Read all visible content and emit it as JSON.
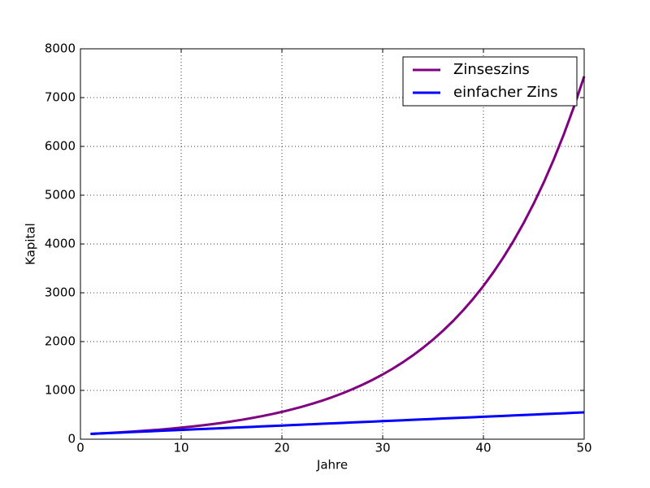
{
  "chart_data": {
    "type": "line",
    "xlabel": "Jahre",
    "ylabel": "Kapital",
    "x": [
      1,
      2,
      3,
      4,
      5,
      6,
      7,
      8,
      9,
      10,
      11,
      12,
      13,
      14,
      15,
      16,
      17,
      18,
      19,
      20,
      21,
      22,
      23,
      24,
      25,
      26,
      27,
      28,
      29,
      30,
      31,
      32,
      33,
      34,
      35,
      36,
      37,
      38,
      39,
      40,
      41,
      42,
      43,
      44,
      45,
      46,
      47,
      48,
      49,
      50
    ],
    "series": [
      {
        "name": "Zinseszins",
        "color": "#800080",
        "values": [
          109,
          119,
          130,
          141,
          154,
          168,
          183,
          199,
          217,
          237,
          258,
          281,
          307,
          334,
          364,
          397,
          433,
          472,
          514,
          560,
          611,
          666,
          726,
          791,
          862,
          940,
          1025,
          1117,
          1217,
          1327,
          1446,
          1576,
          1718,
          1873,
          2041,
          2225,
          2425,
          2644,
          2882,
          3141,
          3424,
          3732,
          4068,
          4434,
          4833,
          5268,
          5742,
          6258,
          6822,
          7436
        ]
      },
      {
        "name": "einfacher Zins",
        "color": "#0000ff",
        "values": [
          109,
          118,
          127,
          136,
          145,
          154,
          163,
          172,
          181,
          190,
          199,
          208,
          217,
          226,
          235,
          244,
          253,
          262,
          271,
          280,
          289,
          298,
          307,
          316,
          325,
          334,
          343,
          352,
          361,
          370,
          379,
          388,
          397,
          406,
          415,
          424,
          433,
          442,
          451,
          460,
          469,
          478,
          487,
          496,
          505,
          514,
          523,
          532,
          541,
          550
        ]
      }
    ],
    "xlim": [
      0,
      50
    ],
    "xticks": [
      0,
      10,
      20,
      30,
      40,
      50
    ],
    "ylim": [
      0,
      8000
    ],
    "yticks": [
      0,
      1000,
      2000,
      3000,
      4000,
      5000,
      6000,
      7000,
      8000
    ],
    "grid": true,
    "legend": "upper right"
  }
}
